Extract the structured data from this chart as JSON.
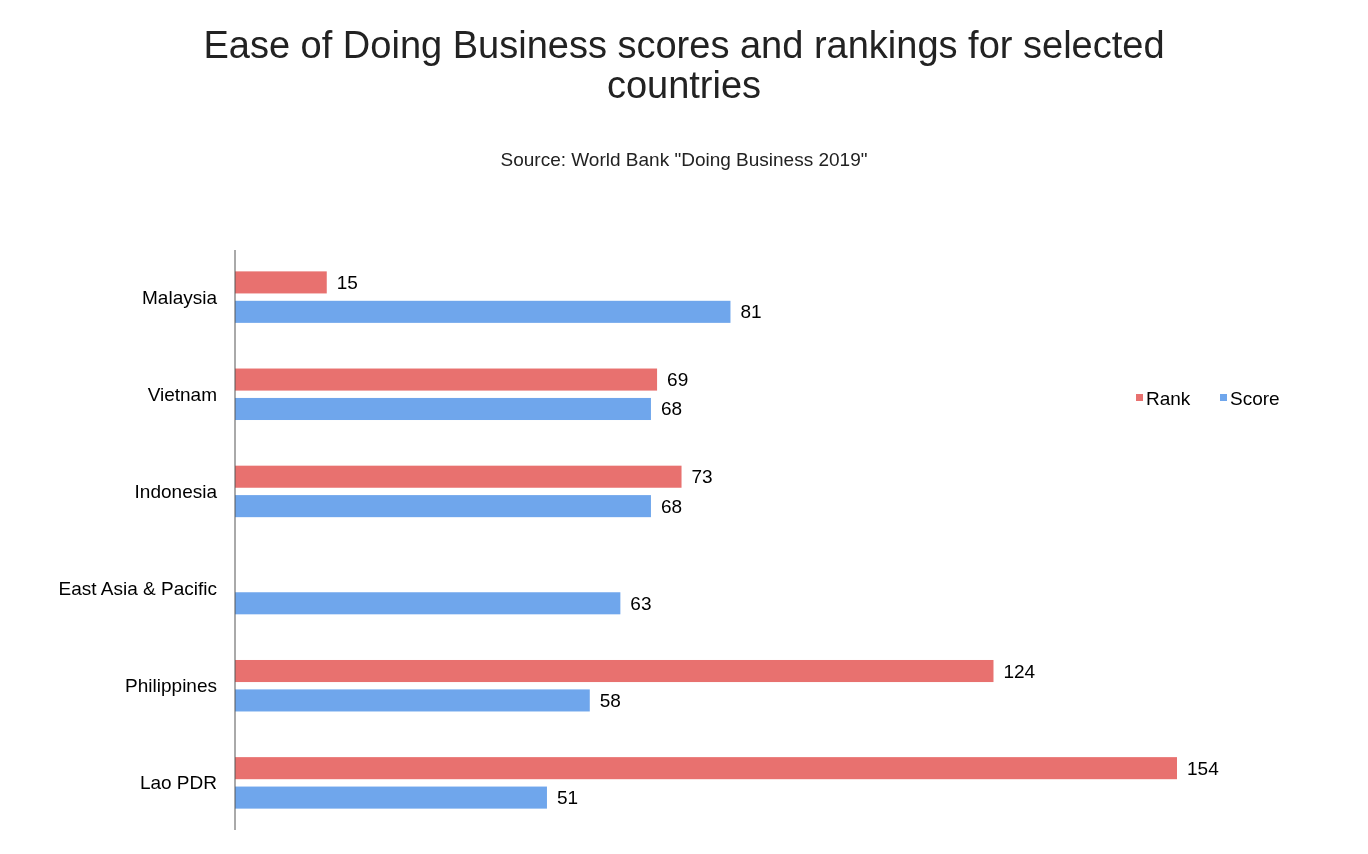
{
  "chart_data": {
    "type": "bar",
    "orientation": "horizontal",
    "title": "Ease of Doing Business scores and rankings for selected countries",
    "subtitle": "Source: World Bank \"Doing Business 2019\"",
    "categories": [
      "Malaysia",
      "Vietnam",
      "Indonesia",
      "East Asia & Pacific",
      "Philippines",
      "Lao PDR"
    ],
    "series": [
      {
        "name": "Rank",
        "color": "#e8716f",
        "values": [
          15,
          69,
          73,
          null,
          124,
          154
        ]
      },
      {
        "name": "Score",
        "color": "#6fa6ec",
        "values": [
          81,
          68,
          68,
          63,
          58,
          51
        ]
      }
    ],
    "data_labels": true,
    "legend": "right"
  }
}
